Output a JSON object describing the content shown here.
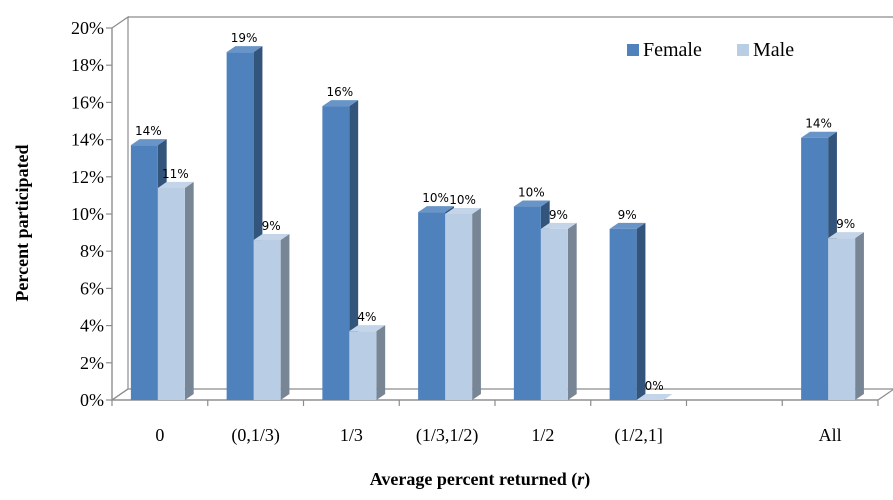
{
  "chart_data": {
    "type": "bar",
    "categories": [
      "0",
      "(0,1/3)",
      "1/3",
      "(1/3,1/2)",
      "1/2",
      "(1/2,1]",
      "",
      "All"
    ],
    "series": [
      {
        "name": "Female",
        "color": "#4f81bd",
        "values": [
          13.7,
          18.7,
          15.8,
          10.1,
          10.4,
          9.2,
          null,
          14.1
        ],
        "labels": [
          "14%",
          "19%",
          "16%",
          "10%",
          "10%",
          "9%",
          "",
          "14%"
        ]
      },
      {
        "name": "Male",
        "color": "#b9cde5",
        "values": [
          11.4,
          8.6,
          3.7,
          10.0,
          9.2,
          0.0,
          null,
          8.7
        ],
        "labels": [
          "11%",
          "9%",
          "4%",
          "10%",
          "9%",
          "0%",
          "",
          "9%"
        ]
      }
    ],
    "yticks": [
      "0%",
      "2%",
      "4%",
      "6%",
      "8%",
      "10%",
      "12%",
      "14%",
      "16%",
      "18%",
      "20%"
    ],
    "ylim": [
      0,
      20
    ],
    "xlabel": "Average percent returned (r)",
    "xlabel_parts": {
      "text": "Average percent returned (",
      "var": "r",
      "close": ")"
    },
    "ylabel": "Percent participated",
    "legend": {
      "position": "top-right",
      "entries": [
        "Female",
        "Male"
      ]
    },
    "grid": false
  }
}
